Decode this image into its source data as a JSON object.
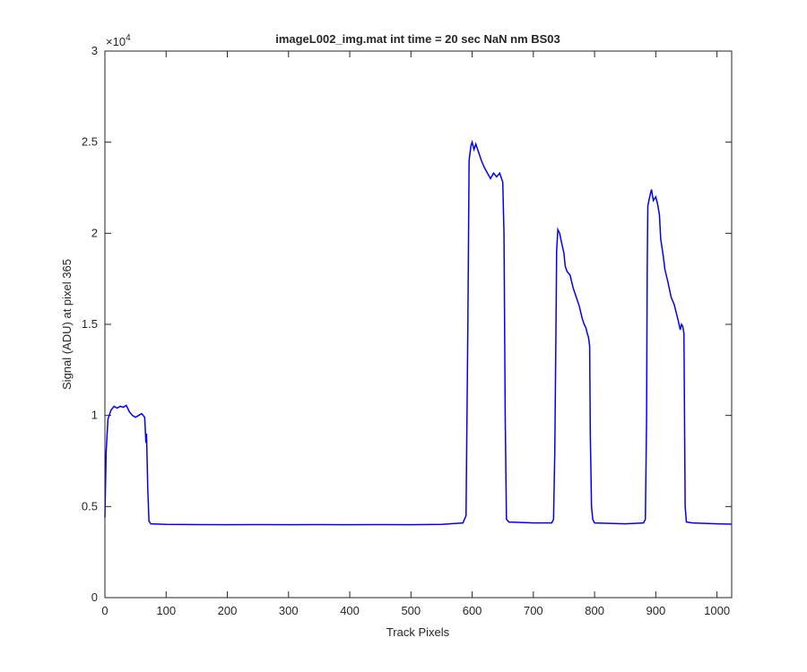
{
  "chart_data": {
    "type": "line",
    "title": "imageL002_img.mat int time = 20 sec  NaN nm BS03",
    "xlabel": "Track Pixels",
    "ylabel": "Signal (ADU) at pixel 365",
    "y_exponent": {
      "base": "×10",
      "power": "4"
    },
    "color": "#0000ff",
    "xlim": [
      0,
      1024
    ],
    "ylim": [
      0,
      30000
    ],
    "xticks": [
      0,
      100,
      200,
      300,
      400,
      500,
      600,
      700,
      800,
      900,
      1000
    ],
    "yticks": [
      0,
      {
        "value": 5000,
        "label": "0.5"
      },
      {
        "value": 10000,
        "label": "1"
      },
      {
        "value": 15000,
        "label": "1.5"
      },
      {
        "value": 20000,
        "label": "2"
      },
      {
        "value": 25000,
        "label": "2.5"
      },
      {
        "value": 30000,
        "label": "3"
      }
    ],
    "x": [
      0,
      2,
      5,
      10,
      15,
      20,
      25,
      30,
      35,
      40,
      45,
      50,
      55,
      60,
      65,
      67,
      68,
      69,
      70,
      72,
      75,
      100,
      150,
      200,
      250,
      300,
      350,
      400,
      450,
      500,
      550,
      585,
      590,
      593,
      595,
      598,
      600,
      603,
      606,
      610,
      615,
      620,
      625,
      630,
      635,
      640,
      645,
      650,
      652,
      654,
      656,
      660,
      700,
      730,
      733,
      735,
      737,
      738,
      740,
      743,
      746,
      750,
      752,
      755,
      760,
      765,
      770,
      775,
      780,
      783,
      786,
      788,
      790,
      792,
      793,
      795,
      797,
      800,
      850,
      880,
      883,
      885,
      886,
      887,
      890,
      893,
      896,
      900,
      903,
      906,
      908,
      912,
      915,
      920,
      925,
      930,
      933,
      936,
      938,
      940,
      942,
      944,
      946,
      948,
      950,
      960,
      1000,
      1024
    ],
    "values": [
      4400,
      8000,
      9800,
      10300,
      10500,
      10400,
      10500,
      10450,
      10550,
      10200,
      10000,
      9900,
      10000,
      10100,
      9900,
      8500,
      9000,
      7500,
      6000,
      4200,
      4050,
      4020,
      4010,
      4000,
      4010,
      4000,
      4010,
      4000,
      4010,
      4000,
      4020,
      4100,
      4500,
      15000,
      24000,
      24800,
      25000,
      24600,
      24900,
      24500,
      24000,
      23600,
      23300,
      23000,
      23300,
      23100,
      23300,
      22800,
      20000,
      10000,
      4300,
      4150,
      4100,
      4100,
      4300,
      8000,
      15000,
      19000,
      20200,
      20000,
      19500,
      18900,
      18200,
      17900,
      17700,
      17000,
      16500,
      16000,
      15300,
      15000,
      14800,
      14500,
      14300,
      13800,
      9000,
      5000,
      4300,
      4100,
      4050,
      4100,
      4300,
      10000,
      18000,
      21500,
      22000,
      22400,
      21800,
      22000,
      21600,
      21000,
      19700,
      18800,
      18000,
      17300,
      16500,
      16100,
      15700,
      15300,
      15000,
      14700,
      15000,
      14900,
      14500,
      5000,
      4150,
      4100,
      4050,
      4030
    ]
  }
}
